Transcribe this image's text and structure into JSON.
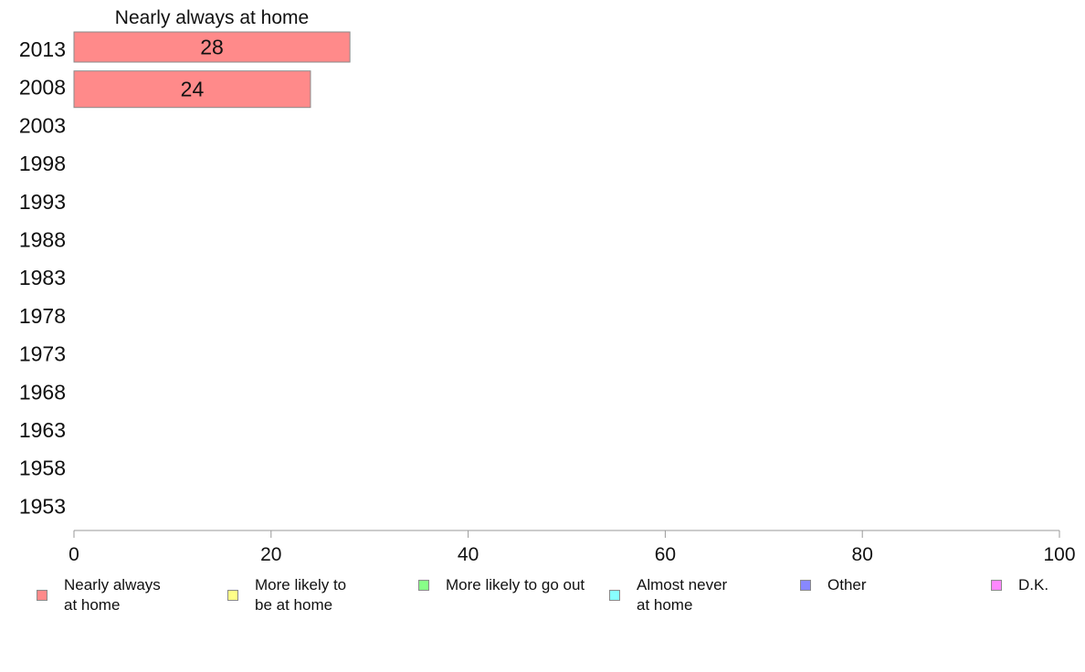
{
  "chart_data": {
    "type": "bar",
    "orientation": "horizontal",
    "title": "Nearly always at home",
    "categories": [
      "2013",
      "2008",
      "2003",
      "1998",
      "1993",
      "1988",
      "1983",
      "1978",
      "1973",
      "1968",
      "1963",
      "1958",
      "1953"
    ],
    "series": [
      {
        "name": "Nearly always at home",
        "color": "#ff8a8a",
        "values": [
          28,
          24,
          null,
          null,
          null,
          null,
          null,
          null,
          null,
          null,
          null,
          null,
          null
        ]
      }
    ],
    "data_labels": [
      "28",
      "24"
    ],
    "xlim": [
      0,
      100
    ],
    "xticks": [
      "0",
      "20",
      "40",
      "60",
      "80",
      "100"
    ],
    "grid": false,
    "legend_position": "bottom"
  },
  "legend": [
    {
      "label": "Nearly always at home",
      "line1": "Nearly always",
      "line2": "at home",
      "color": "#ff8a8a"
    },
    {
      "label": "More likely to be at home",
      "line1": "More likely to",
      "line2": "be at home",
      "color": "#ffff88"
    },
    {
      "label": "More likely to go out",
      "line1": "More likely to go out",
      "line2": "",
      "color": "#88ff88"
    },
    {
      "label": "Almost never at home",
      "line1": "Almost never",
      "line2": "at home",
      "color": "#88ffff"
    },
    {
      "label": "Other",
      "line1": "Other",
      "line2": "",
      "color": "#8888ff"
    },
    {
      "label": "D.K.",
      "line1": "D.K.",
      "line2": "",
      "color": "#ff88ff"
    }
  ]
}
